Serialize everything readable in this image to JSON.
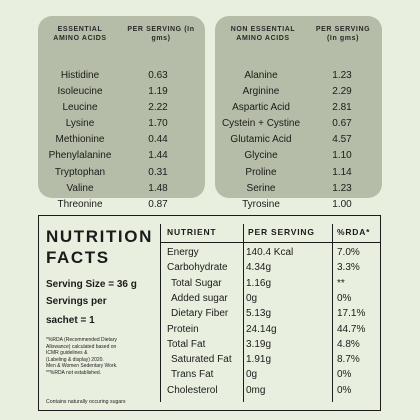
{
  "essential": {
    "header_name": "ESSENTIAL AMINO ACIDS",
    "header_value": "PER SERVING (In gms)",
    "rows": [
      {
        "name": "Histidine",
        "value": "0.63"
      },
      {
        "name": "Isoleucine",
        "value": "1.19"
      },
      {
        "name": "Leucine",
        "value": "2.22"
      },
      {
        "name": "Lysine",
        "value": "1.70"
      },
      {
        "name": "Methionine",
        "value": "0.44"
      },
      {
        "name": "Phenylalanine",
        "value": "1.44"
      },
      {
        "name": "Tryptophan",
        "value": "0.31"
      },
      {
        "name": "Valine",
        "value": "1.48"
      },
      {
        "name": "Threonine",
        "value": "0.87"
      }
    ]
  },
  "non_essential": {
    "header_name": "NON ESSENTIAL AMINO ACIDS",
    "header_value": "PER SERVING (In gms)",
    "rows": [
      {
        "name": "Alanine",
        "value": "1.23"
      },
      {
        "name": "Arginine",
        "value": "2.29"
      },
      {
        "name": "Aspartic Acid",
        "value": "2.81"
      },
      {
        "name": "Cystein + Cystine",
        "value": "0.67"
      },
      {
        "name": "Glutamic Acid",
        "value": "4.57"
      },
      {
        "name": "Glycine",
        "value": "1.10"
      },
      {
        "name": "Proline",
        "value": "1.14"
      },
      {
        "name": "Serine",
        "value": "1.23"
      },
      {
        "name": "Tyrosine",
        "value": "1.00"
      }
    ]
  },
  "facts": {
    "title_line1": "NUTRITION",
    "title_line2": "FACTS",
    "serving_size": "Serving Size =  36 g",
    "servings_line1": "Servings per",
    "servings_line2": "sachet = 1",
    "note_line1": "*%RDA (Recommended Dietary",
    "note_line2": "Allowance) calculated based on",
    "note_line3": "ICMR guidelines &",
    "note_line4": "(Labeling & display) 2020.",
    "note_line5": "Men & Women Sedentary Work.",
    "note_line6": "**%RDA not established.",
    "contains": "Contains naturally occuring sugars",
    "col_nutrient": "NUTRIENT",
    "col_serving": "PER SERVING",
    "col_rda": "%RDA*",
    "rows": [
      {
        "name": "Energy",
        "value": "140.4 Kcal",
        "rda": "7.0%",
        "sub": false
      },
      {
        "name": "Carbohydrate",
        "value": "4.34g",
        "rda": "3.3%",
        "sub": false
      },
      {
        "name": "Total Sugar",
        "value": "1.16g",
        "rda": "**",
        "sub": true
      },
      {
        "name": "Added sugar",
        "value": "0g",
        "rda": "0%",
        "sub": true
      },
      {
        "name": "Dietary Fiber",
        "value": "5.13g",
        "rda": "17.1%",
        "sub": true
      },
      {
        "name": "Protein",
        "value": "24.14g",
        "rda": "44.7%",
        "sub": false
      },
      {
        "name": "Total Fat",
        "value": "3.19g",
        "rda": "4.8%",
        "sub": false
      },
      {
        "name": "Saturated Fat",
        "value": "1.91g",
        "rda": "8.7%",
        "sub": true
      },
      {
        "name": "Trans Fat",
        "value": "0g",
        "rda": "0%",
        "sub": true
      },
      {
        "name": "Cholesterol",
        "value": "0mg",
        "rda": "0%",
        "sub": false
      }
    ]
  }
}
